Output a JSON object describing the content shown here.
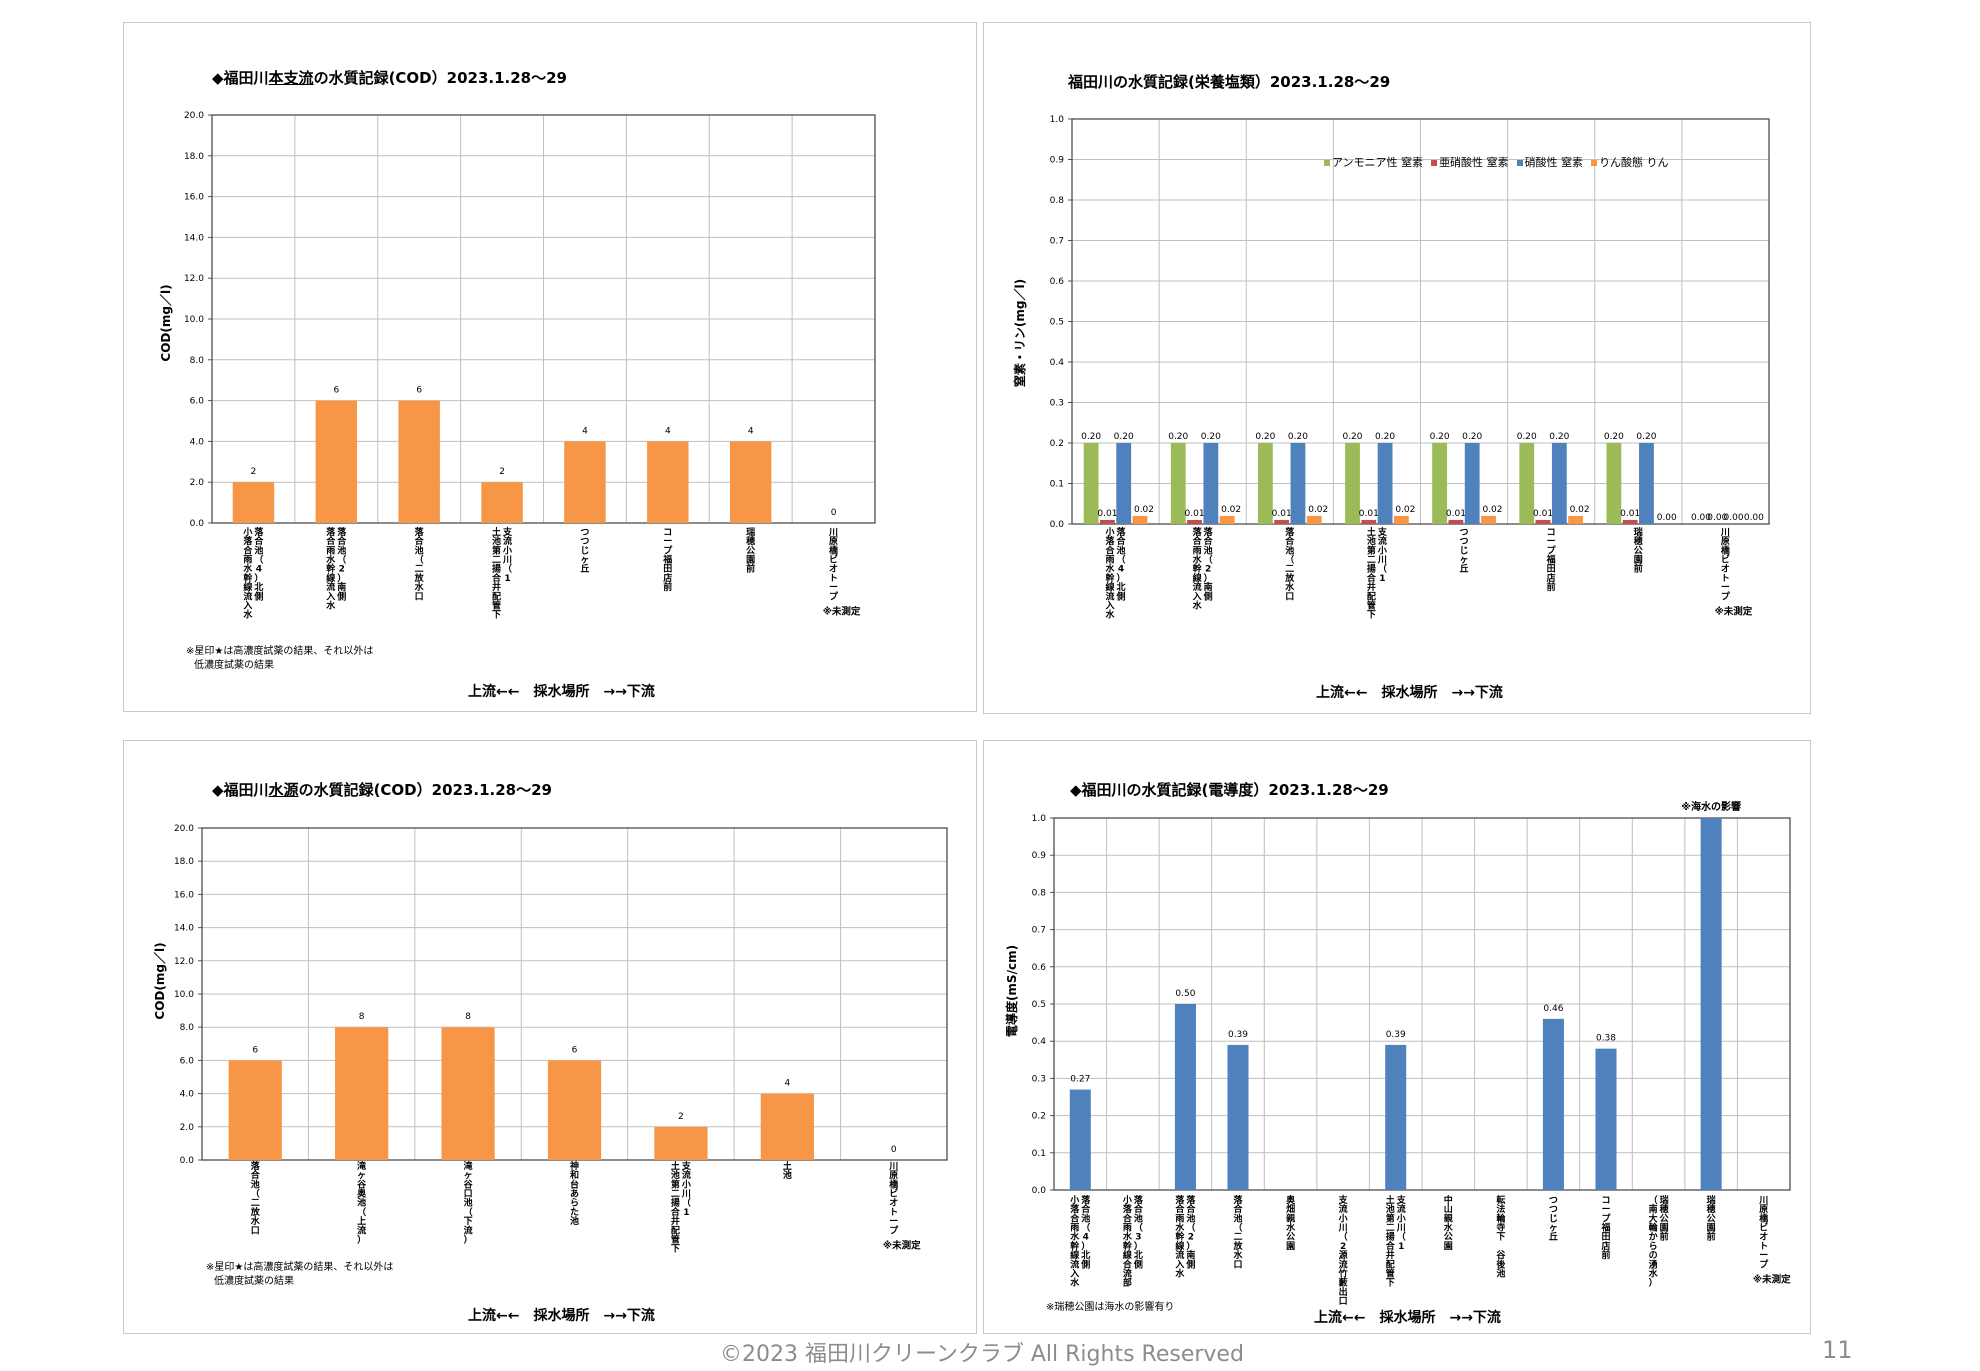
{
  "panels": [
    {
      "title_prefix": "◆福田川",
      "title_underlined": "本支流",
      "title_suffix": "の水質記録(COD）2023.1.28～29",
      "ylabel": "COD(mg／l)",
      "xtitle": "上流←←　採水場所　→→下流",
      "note_lines": [
        "※星印★は高濃度試薬の結果、それ以外は",
        "低濃度試薬の結果"
      ]
    },
    {
      "title_prefix": "",
      "title_underlined": "",
      "title_suffix": "福田川の水質記録(栄養塩類）2023.1.28～29",
      "ylabel": "窒素・リン(mg／l)",
      "xtitle": "上流←←　採水場所　→→下流",
      "note_lines": []
    },
    {
      "title_prefix": "◆福田川",
      "title_underlined": "水源",
      "title_suffix": "の水質記録(COD）2023.1.28～29",
      "ylabel": "COD(mg／l)",
      "xtitle": "上流←←　採水場所　→→下流",
      "note_lines": [
        "※星印★は高濃度試薬の結果、それ以外は",
        "低濃度試薬の結果"
      ]
    },
    {
      "title_prefix": "",
      "title_underlined": "",
      "title_suffix": "◆福田川の水質記録(電導度）2023.1.28～29",
      "ylabel": "電導度(mS/cm)",
      "xtitle": "上流←←　採水場所　→→下流",
      "note_lines": [
        "※瑞穂公園は海水の影響有り"
      ]
    }
  ],
  "footer": {
    "copyright": "©2023 福田川クリーンクラブ All Rights Reserved",
    "page_number": "11"
  },
  "chart_data": [
    {
      "type": "bar",
      "title": "◆福田川本支流の水質記録(COD）2023.1.28～29",
      "ylabel": "COD(mg／l)",
      "xlabel": "上流←←　採水場所　→→下流",
      "ylim": [
        0,
        20
      ],
      "yticks": [
        "0.0",
        "2.0",
        "4.0",
        "6.0",
        "8.0",
        "10.0",
        "12.0",
        "14.0",
        "16.0",
        "18.0",
        "20.0"
      ],
      "categories": [
        {
          "lines": [
            "小落合雨水幹線流入水",
            "落合池（4）北側"
          ]
        },
        {
          "lines": [
            "落合雨水幹線流入水",
            "落合池（2）南側"
          ]
        },
        {
          "lines": [
            "落合池（二放水口"
          ]
        },
        {
          "lines": [
            "土池第二揚合井配管下",
            "支流小川（1"
          ]
        },
        {
          "lines": [
            "つつじヶ丘"
          ]
        },
        {
          "lines": [
            "コープ福田店前"
          ]
        },
        {
          "lines": [
            "瑞穂公園前"
          ]
        },
        {
          "lines": [
            "川原橋ビオトープ"
          ],
          "note": "※未測定"
        }
      ],
      "values": [
        2,
        6,
        6,
        2,
        4,
        4,
        4,
        0
      ],
      "data_labels": [
        "2",
        "6",
        "6",
        "2",
        "4",
        "4",
        "4",
        "0"
      ],
      "color": "#f79646",
      "grid": true
    },
    {
      "type": "bar",
      "title": "福田川の水質記録(栄養塩類）2023.1.28～29",
      "ylabel": "窒素・リン(mg／l)",
      "xlabel": "上流←←　採水場所　→→下流",
      "ylim": [
        0,
        1.0
      ],
      "yticks": [
        "0.0",
        "0.1",
        "0.2",
        "0.3",
        "0.4",
        "0.5",
        "0.6",
        "0.7",
        "0.8",
        "0.9",
        "1.0"
      ],
      "legend_position": "top-right",
      "categories": [
        {
          "lines": [
            "小落合雨水幹線流入水",
            "落合池（4）北側"
          ]
        },
        {
          "lines": [
            "落合雨水幹線流入水",
            "落合池（2）南側"
          ]
        },
        {
          "lines": [
            "落合池（二放水口"
          ]
        },
        {
          "lines": [
            "土池第二揚合井配管下",
            "支流小川（1"
          ]
        },
        {
          "lines": [
            "つつじヶ丘"
          ]
        },
        {
          "lines": [
            "コープ福田店前"
          ]
        },
        {
          "lines": [
            "瑞穂公園前"
          ]
        },
        {
          "lines": [
            "川原橋ビオトープ"
          ],
          "note": "※未測定"
        }
      ],
      "series": [
        {
          "name": "アンモニア性 窒素",
          "color": "#9bbb59",
          "values": [
            0.2,
            0.2,
            0.2,
            0.2,
            0.2,
            0.2,
            0.2,
            0.0
          ],
          "labels": [
            "0.20",
            "0.20",
            "0.20",
            "0.20",
            "0.20",
            "0.20",
            "0.20",
            "0.00"
          ]
        },
        {
          "name": "亜硝酸性 窒素",
          "color": "#c0504d",
          "values": [
            0.01,
            0.01,
            0.01,
            0.01,
            0.01,
            0.01,
            0.01,
            0.0
          ],
          "labels": [
            "0.01",
            "0.01",
            "0.01",
            "0.01",
            "0.01",
            "0.01",
            "0.01",
            "0.00"
          ]
        },
        {
          "name": "硝酸性 窒素",
          "color": "#4f81bd",
          "values": [
            0.2,
            0.2,
            0.2,
            0.2,
            0.2,
            0.2,
            0.2,
            0.0
          ],
          "labels": [
            "0.20",
            "0.20",
            "0.20",
            "0.20",
            "0.20",
            "0.20",
            "0.20",
            "0.00"
          ]
        },
        {
          "name": "りん酸態 りん",
          "color": "#f79646",
          "values": [
            0.02,
            0.02,
            0.02,
            0.02,
            0.02,
            0.02,
            0.0,
            0.0
          ],
          "labels": [
            "0.02",
            "0.02",
            "0.02",
            "0.02",
            "0.02",
            "0.02",
            "0.00",
            "0.00"
          ]
        }
      ],
      "grid": true
    },
    {
      "type": "bar",
      "title": "◆福田川水源の水質記録(COD）2023.1.28～29",
      "ylabel": "COD(mg／l)",
      "xlabel": "上流←←　採水場所　→→下流",
      "ylim": [
        0,
        20
      ],
      "yticks": [
        "0.0",
        "2.0",
        "4.0",
        "6.0",
        "8.0",
        "10.0",
        "12.0",
        "14.0",
        "16.0",
        "18.0",
        "20.0"
      ],
      "categories": [
        {
          "lines": [
            "落合池（二放水口"
          ]
        },
        {
          "lines": [
            "滝ヶ谷奥池（上流）"
          ]
        },
        {
          "lines": [
            "滝ヶ谷口池（下流）"
          ]
        },
        {
          "lines": [
            "神和台あらた池"
          ]
        },
        {
          "lines": [
            "土池第二揚合井配管下",
            "支流小川（1"
          ]
        },
        {
          "lines": [
            "土池"
          ]
        },
        {
          "lines": [
            "川原橋ビオトープ"
          ],
          "note": "※未測定"
        }
      ],
      "values": [
        6,
        8,
        8,
        6,
        2,
        4,
        0
      ],
      "data_labels": [
        "6",
        "8",
        "8",
        "6",
        "2",
        "4",
        "0"
      ],
      "color": "#f79646",
      "grid": true
    },
    {
      "type": "bar",
      "title": "◆福田川の水質記録(電導度）2023.1.28～29",
      "ylabel": "電導度(mS/cm)",
      "xlabel": "上流←←　採水場所　→→下流",
      "ylim": [
        0,
        1.0
      ],
      "yticks": [
        "0.0",
        "0.1",
        "0.2",
        "0.3",
        "0.4",
        "0.5",
        "0.6",
        "0.7",
        "0.8",
        "0.9",
        "1.0"
      ],
      "annotation": "※海水の影響",
      "annotation_index": 12,
      "categories": [
        {
          "lines": [
            "小落合雨水幹線流入水",
            "落合池（4）北側"
          ]
        },
        {
          "lines": [
            "小落合雨水幹線合流部",
            "落合池（3）北側"
          ]
        },
        {
          "lines": [
            "落合雨水幹線流入水",
            "落合池（2）南側"
          ]
        },
        {
          "lines": [
            "落合池（二放水口"
          ]
        },
        {
          "lines": [
            "奥畑親水公園"
          ]
        },
        {
          "lines": [
            "支流小川（2源流竹藪出口"
          ]
        },
        {
          "lines": [
            "土池第二揚合井配管下",
            "支流小川（1"
          ]
        },
        {
          "lines": [
            "中山親水公園"
          ]
        },
        {
          "lines": [
            "転法輪寺下　谷後池"
          ]
        },
        {
          "lines": [
            "つつじヶ丘"
          ]
        },
        {
          "lines": [
            "コープ福田店前"
          ]
        },
        {
          "lines": [
            "（南大輪からの湧水）",
            "瑞穂公園前"
          ]
        },
        {
          "lines": [
            "瑞穂公園前"
          ]
        },
        {
          "lines": [
            "川原橋ビオトープ"
          ],
          "note": "※未測定"
        }
      ],
      "values": [
        0.27,
        null,
        0.5,
        0.39,
        null,
        null,
        0.39,
        null,
        null,
        0.46,
        0.38,
        null,
        1.0,
        null
      ],
      "data_labels": [
        "0.27",
        "",
        "0.50",
        "0.39",
        "",
        "",
        "0.39",
        "",
        "",
        "0.46",
        "0.38",
        "",
        "",
        ""
      ],
      "color": "#4f81bd",
      "grid": true
    }
  ]
}
